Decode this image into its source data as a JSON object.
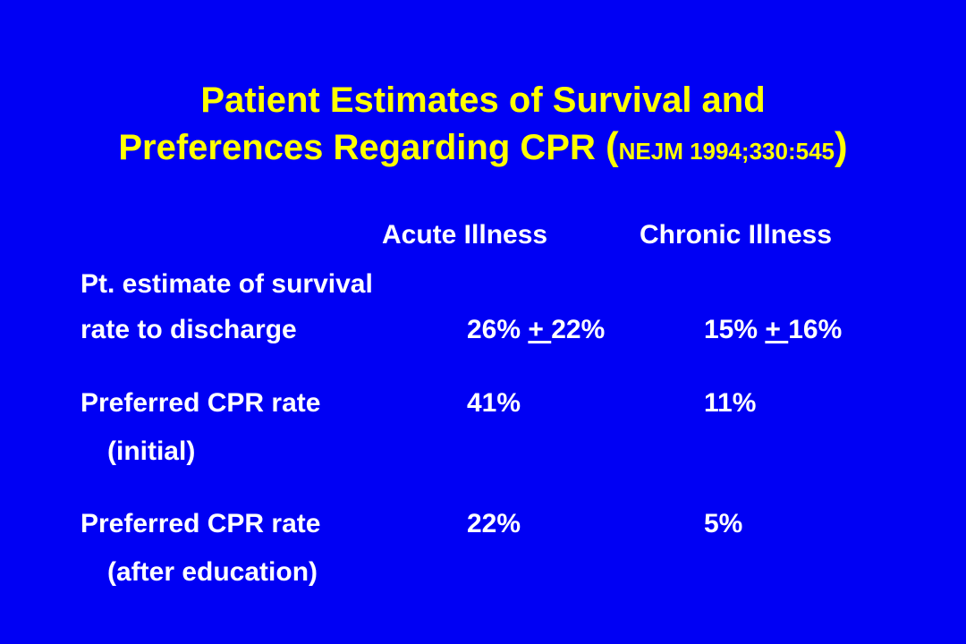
{
  "title": {
    "line1": "Patient Estimates of Survival and",
    "line2_main": "Preferences Regarding CPR",
    "line2_open": "(",
    "line2_citation": "NEJM 1994;330:545",
    "line2_close": ")"
  },
  "columns": {
    "acute": "Acute Illness",
    "chronic": "Chronic Illness"
  },
  "rows": [
    {
      "label_line1": "Pt. estimate of survival",
      "label_line2": "rate to discharge",
      "acute": {
        "before": "26% ",
        "pm": "+ ",
        "after": "22%"
      },
      "chronic": {
        "before": "15% ",
        "pm": "+ ",
        "after": "16%"
      }
    },
    {
      "label_line1": "Preferred CPR rate",
      "label_line2": "(initial)",
      "acute": "41%",
      "chronic": "11%"
    },
    {
      "label_line1": "Preferred CPR rate",
      "label_line2": "(after education)",
      "acute": "22%",
      "chronic": "5%"
    }
  ],
  "colors": {
    "background": "#0000f4",
    "title": "#ffff00",
    "text": "#ffffff"
  }
}
